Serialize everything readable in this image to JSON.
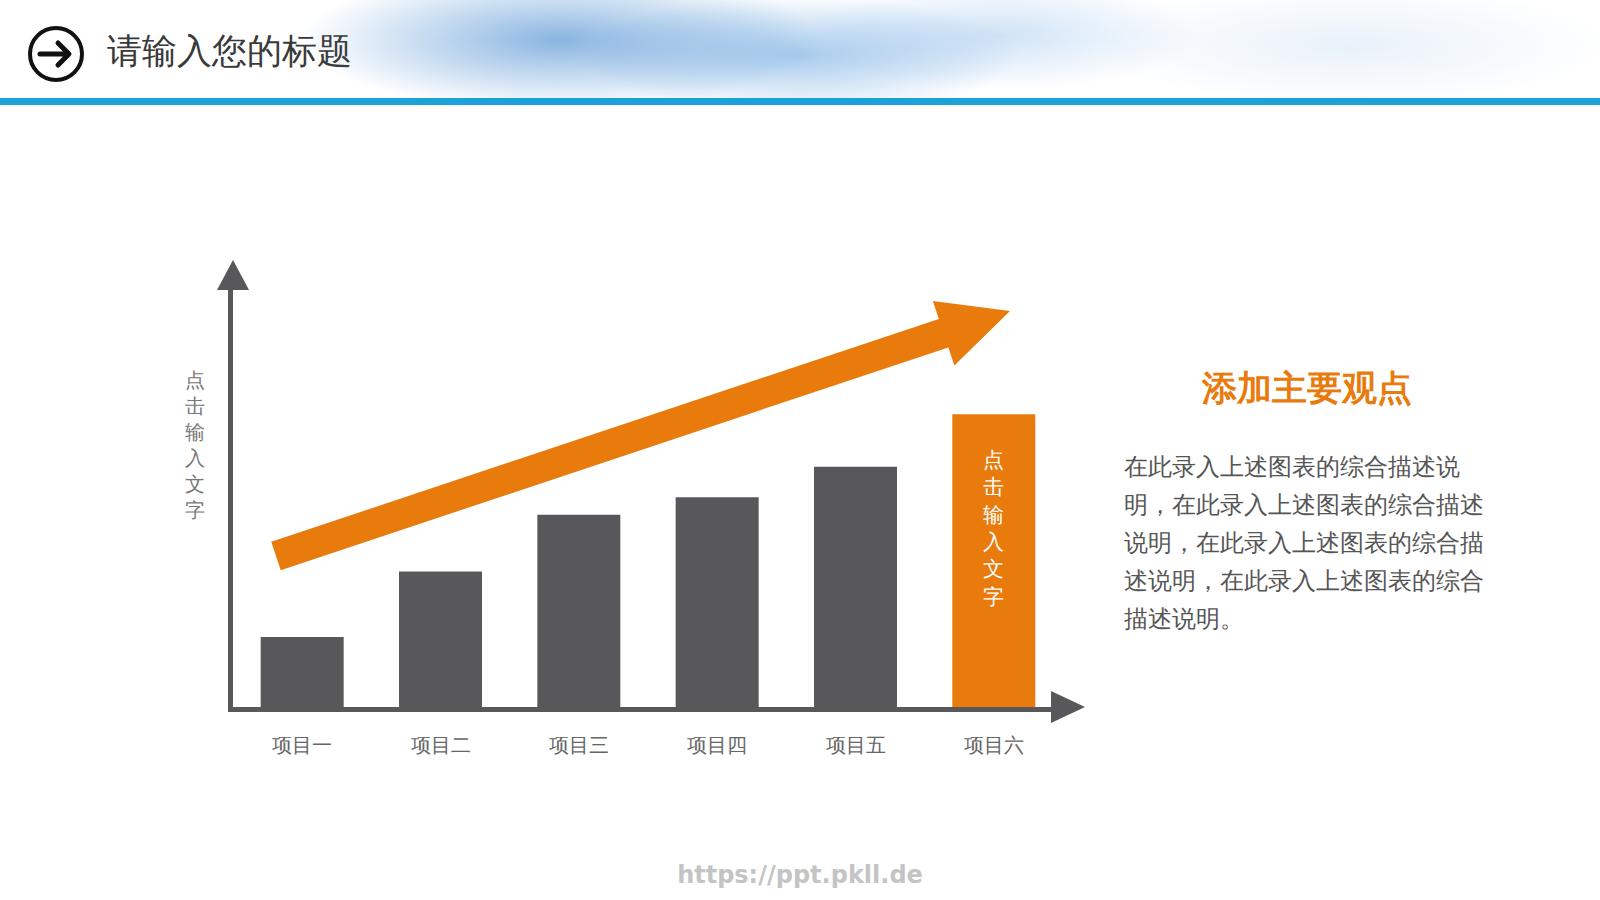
{
  "header": {
    "title": "请输入您的标题"
  },
  "chart_data": {
    "type": "bar",
    "categories": [
      "项目一",
      "项目二",
      "项目三",
      "项目四",
      "项目五",
      "项目六"
    ],
    "values": [
      16,
      31,
      44,
      48,
      55,
      67
    ],
    "colors": [
      "#58585a",
      "#58585a",
      "#58585a",
      "#58585a",
      "#58585a",
      "#e87b0c"
    ],
    "ylim": [
      0,
      100
    ],
    "y_label": "点击输入文字",
    "annotations": [
      {
        "category": "项目六",
        "text": "点击输入文字"
      }
    ],
    "grid": false,
    "tick_labels": "x"
  },
  "side_panel": {
    "heading": "添加主要观点",
    "text": "在此录入上述图表的综合描述说明，在此录入上述图表的综合描述说明，在此录入上述图表的综合描述说明，在此录入上述图表的综合描述说明。"
  },
  "watermark": "https://ppt.pkll.de"
}
